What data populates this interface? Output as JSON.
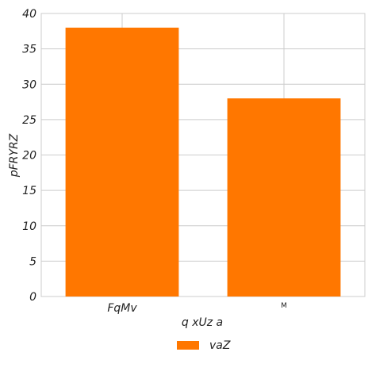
{
  "chart_data": {
    "type": "bar",
    "categories": [
      "FqMv",
      "M"
    ],
    "series": [
      {
        "name": "vaZ",
        "values": [
          38,
          28
        ],
        "color": "#ff7700"
      }
    ],
    "title": "",
    "xlabel": "q xUz a",
    "ylabel": "pFRYRZ",
    "ylim": [
      0,
      40
    ],
    "yticks": [
      0,
      5,
      10,
      15,
      20,
      25,
      30,
      35,
      40
    ],
    "grid": true,
    "legend_position": "bottom-center"
  }
}
